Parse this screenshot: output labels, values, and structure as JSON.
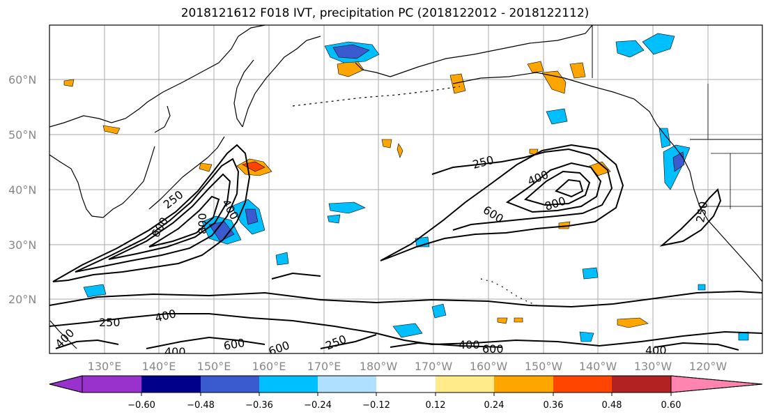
{
  "title": "2018121612 F018 IVT, precipitation PC (2018122012 - 2018122112)",
  "latitude_labels": [
    "60°N",
    "50°N",
    "40°N",
    "30°N",
    "20°N"
  ],
  "longitude_labels": [
    "130°E",
    "140°E",
    "150°E",
    "160°E",
    "170°E",
    "180°W",
    "170°W",
    "160°W",
    "150°W",
    "140°W",
    "130°W",
    "120°W"
  ],
  "contour_labels": [
    "250",
    "400",
    "600",
    "800",
    "250",
    "400",
    "600",
    "800",
    "400",
    "250",
    "250",
    "400",
    "600",
    "600",
    "250",
    "400",
    "600",
    "400",
    "400",
    "400",
    "250"
  ],
  "colorbar": {
    "ticks": [
      "−0.60",
      "−0.48",
      "−0.36",
      "−0.24",
      "−0.12",
      "0.12",
      "0.24",
      "0.36",
      "0.48",
      "0.60"
    ],
    "colors": [
      "#9932cc",
      "#00008b",
      "#3a5bcf",
      "#00bfff",
      "#b0e0ff",
      "#ffffff",
      "#ffeb8a",
      "#ffa500",
      "#ff4500",
      "#b22222",
      "#ff85b0"
    ]
  },
  "palette": {
    "land_outline": "#000000",
    "grid": "#999999",
    "contour": "#000000"
  }
}
